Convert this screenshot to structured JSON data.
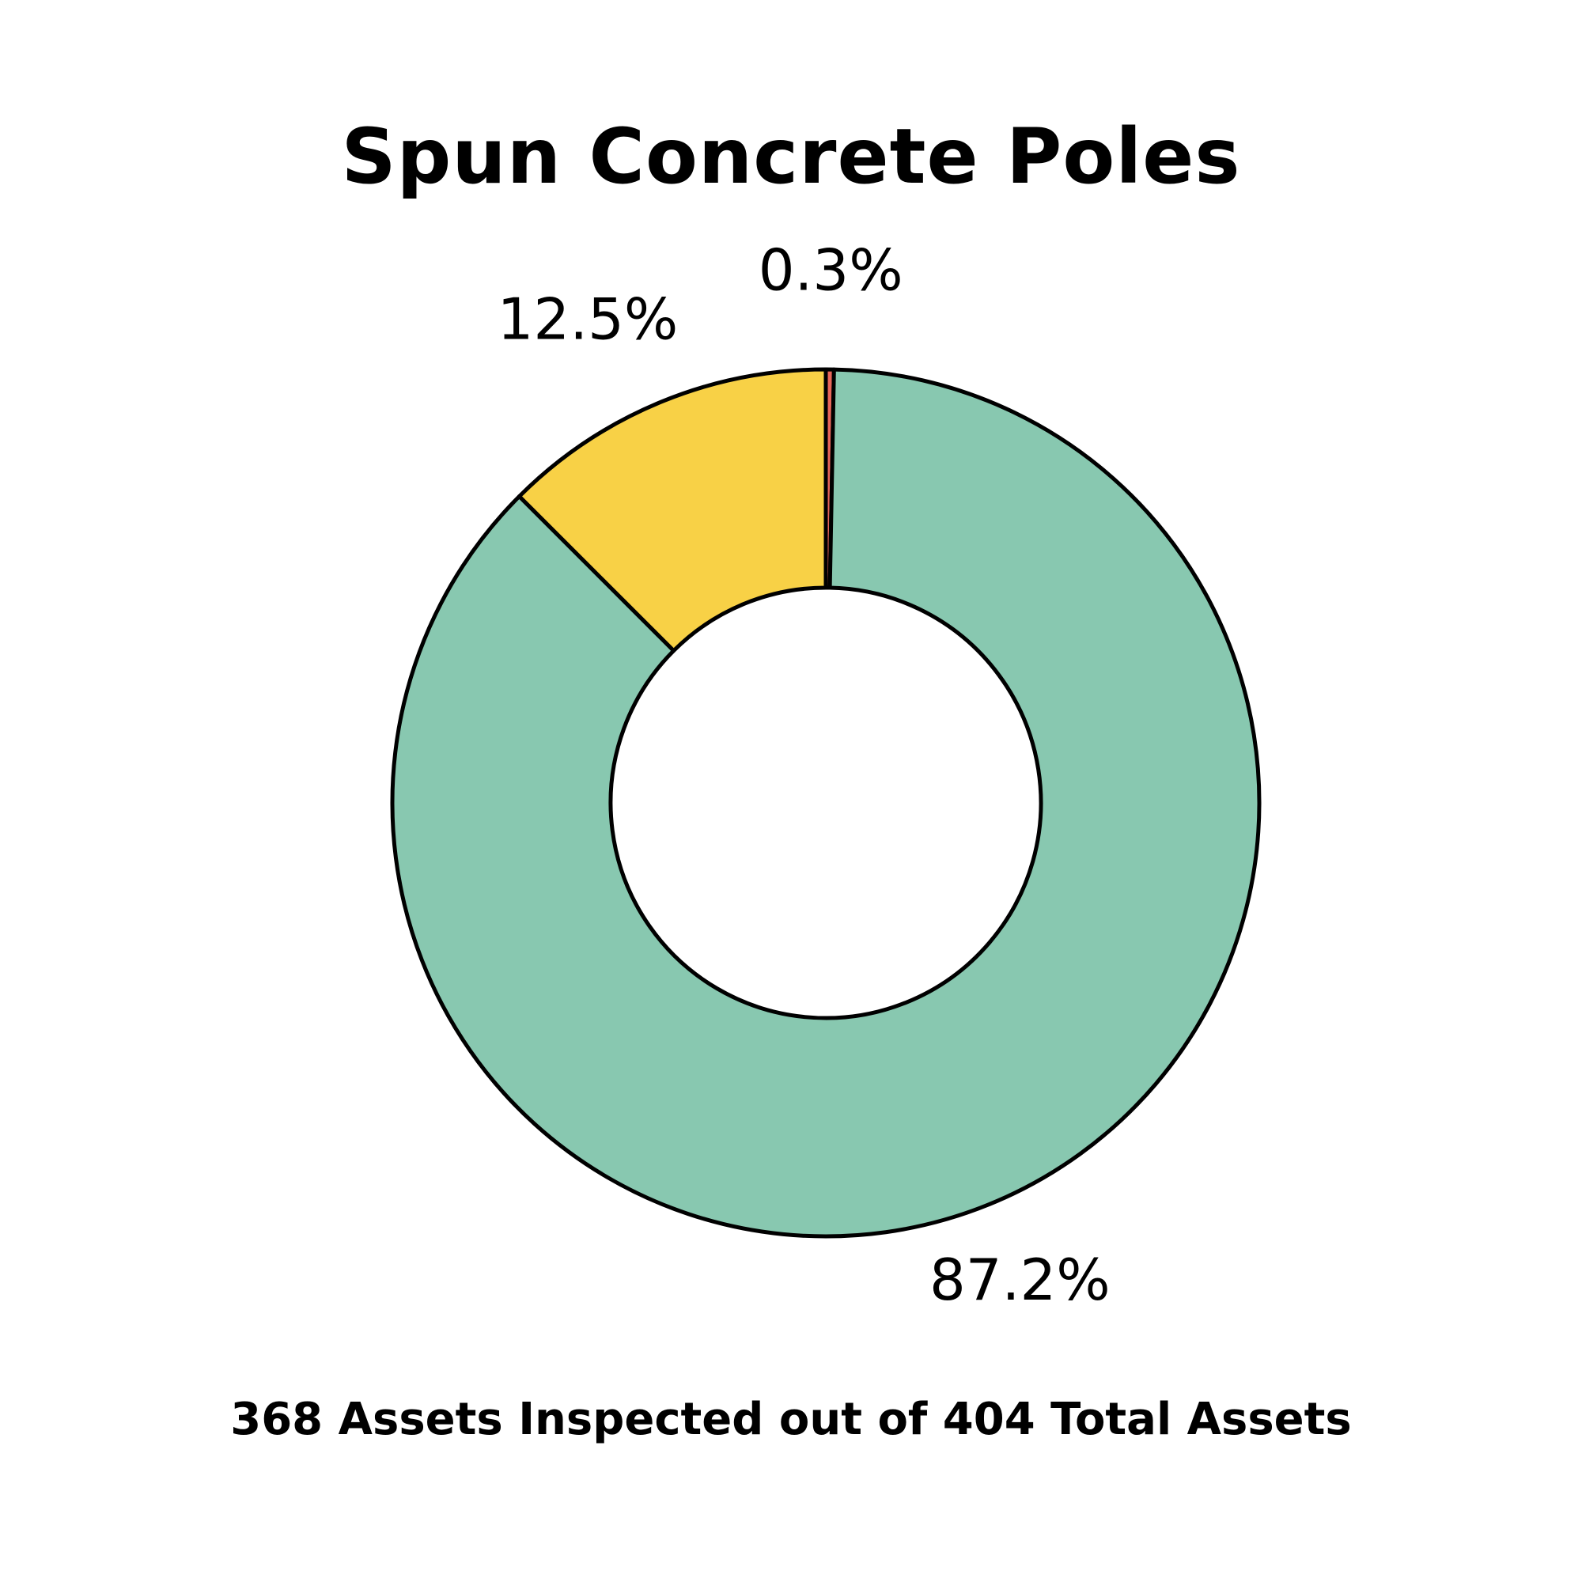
{
  "chart_data": {
    "type": "pie",
    "variant": "donut",
    "title": "Spun Concrete Poles",
    "slices": [
      {
        "value": 0.3,
        "label": "0.3%",
        "color": "#e8675b"
      },
      {
        "value": 87.2,
        "label": "87.2%",
        "color": "#88c8b0"
      },
      {
        "value": 12.5,
        "label": "12.5%",
        "color": "#f8d146"
      }
    ],
    "footnote": "368 Assets Inspected out of 404 Total Assets",
    "legend": "none",
    "outline_color": "#000000"
  }
}
